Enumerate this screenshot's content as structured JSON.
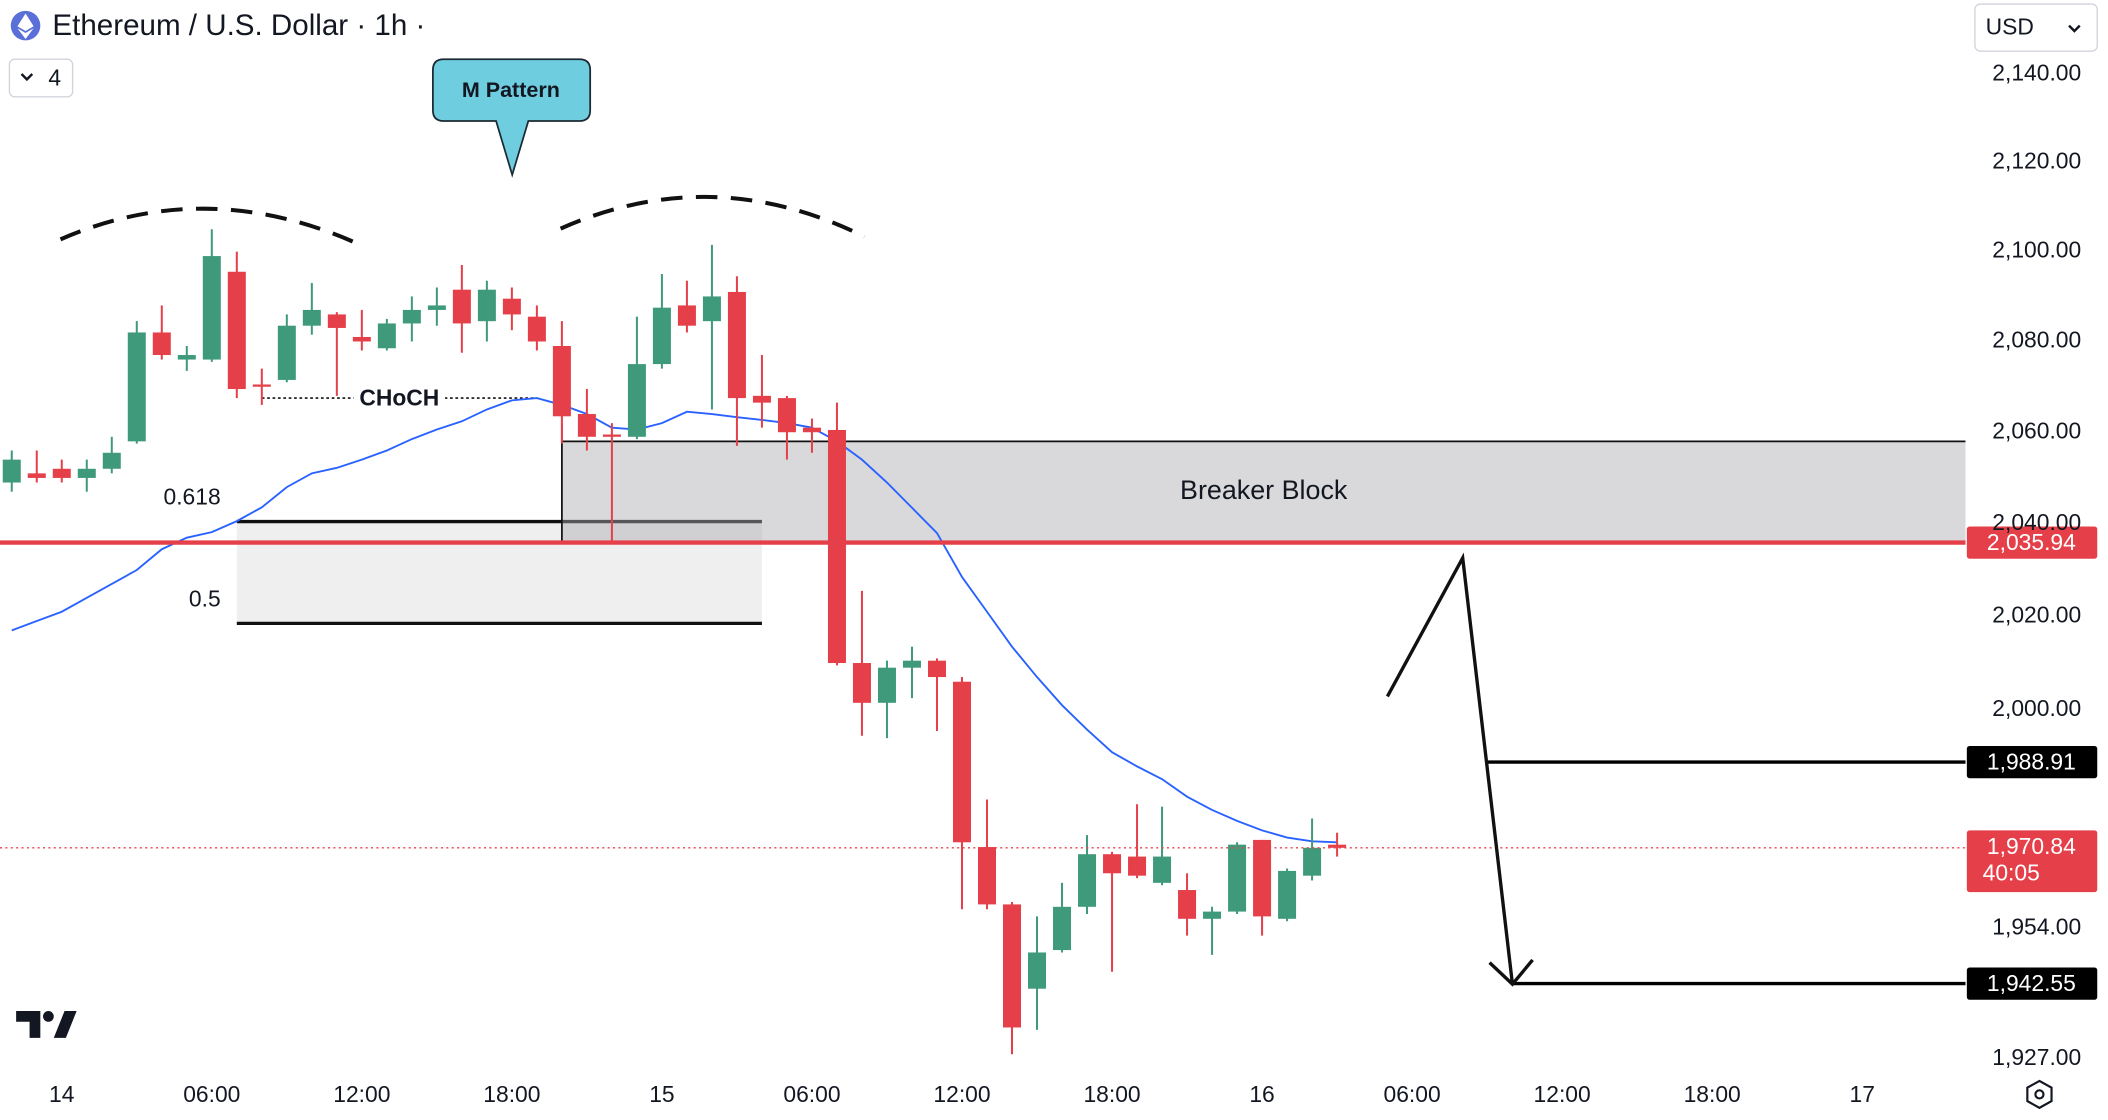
{
  "chart_data": {
    "type": "candlestick",
    "title": "Ethereum / U.S. Dollar · 1h ·",
    "indicator_count": "4",
    "currency": "USD",
    "log_scale": true,
    "up_color": "#3f9a7b",
    "down_color": "#e5404a",
    "x": [
      -2,
      -1,
      0,
      1,
      2,
      3,
      4,
      5,
      6,
      7,
      8,
      9,
      10,
      11,
      12,
      13,
      14,
      15,
      16,
      17,
      18,
      19,
      20,
      21,
      22,
      23,
      24,
      25,
      26,
      27,
      28,
      29,
      30,
      31,
      32,
      33,
      34,
      35,
      36,
      37,
      38,
      39,
      40,
      41,
      42,
      43,
      44,
      45,
      46,
      47,
      48,
      49,
      50,
      51
    ],
    "open": [
      2049,
      2051,
      2052,
      2050,
      2052,
      2058,
      2082,
      2076,
      2076,
      2095.5,
      2070.5,
      2071.5,
      2083.5,
      2086,
      2081,
      2078.5,
      2084,
      2087,
      2091.5,
      2084.5,
      2089.5,
      2085.5,
      2079,
      2064,
      2059.5,
      2059,
      2075,
      2088,
      2084.5,
      2091,
      2068,
      2067.5,
      2061,
      2060.5,
      2010,
      2001.5,
      2009,
      2010.5,
      2006,
      1971,
      1959,
      1941.5,
      1949.5,
      1958.5,
      1969.5,
      1969,
      1963.5,
      1962,
      1956,
      1957.5,
      1972.5,
      1956,
      1965,
      1971.5
    ],
    "high": [
      2056,
      2056,
      2054,
      2054,
      2059,
      2084.5,
      2088,
      2079,
      2105,
      2100,
      2074,
      2086,
      2093,
      2086.5,
      2087,
      2085,
      2090,
      2092,
      2097,
      2093.5,
      2092,
      2088,
      2084.5,
      2069.5,
      2062,
      2085.5,
      2095,
      2093.5,
      2101.5,
      2094.5,
      2077,
      2068,
      2063,
      2066.5,
      2025.5,
      2010.5,
      2013.5,
      2011,
      2007,
      1981,
      1959.5,
      1956.5,
      1963.5,
      1973.5,
      1970,
      1980,
      1979.5,
      1965.5,
      1958.5,
      1972,
      1972.5,
      1966.5,
      1977,
      1974
    ],
    "low": [
      2047,
      2049,
      2049,
      2047,
      2051,
      2057.5,
      2076,
      2073.5,
      2075.5,
      2067.5,
      2066,
      2071,
      2081.5,
      2068,
      2078,
      2078,
      2080,
      2083.5,
      2077.5,
      2080,
      2082.5,
      2078,
      2057.5,
      2056,
      2036,
      2058.5,
      2074,
      2082,
      2065,
      2057,
      2061,
      2054,
      2055.5,
      2009.5,
      1994.5,
      1994,
      2002.5,
      1995.5,
      1958,
      1958,
      1928,
      1933,
      1949,
      1957,
      1945,
      1964.5,
      1963,
      1952.5,
      1948.5,
      1957,
      1952.5,
      1955.5,
      1964,
      1969
    ],
    "close": [
      2054,
      2050,
      2050,
      2052,
      2055.5,
      2082,
      2077,
      2077,
      2099,
      2069.5,
      2070,
      2083.5,
      2087,
      2083,
      2080,
      2084,
      2087,
      2088,
      2084,
      2091.5,
      2086,
      2080,
      2063.5,
      2059,
      2059,
      2075,
      2087.5,
      2083.5,
      2090,
      2067.5,
      2066.5,
      2060,
      2060,
      2010,
      2001.5,
      2009,
      2010.5,
      2007,
      1972,
      1959,
      1933.5,
      1949,
      1958.5,
      1969.5,
      1965.5,
      1965,
      1969,
      1956,
      1957.5,
      1971.5,
      1956.5,
      1966,
      1970.84,
      1970.84
    ],
    "ma": {
      "color": "#2962ff",
      "values": [
        2017,
        2019,
        2021,
        2024,
        2027,
        2030,
        2034.5,
        2037,
        2038.2,
        2040.6,
        2043.6,
        2048,
        2051,
        2052.2,
        2054,
        2056,
        2058.5,
        2060.6,
        2062.4,
        2065,
        2067,
        2067.5,
        2066,
        2064,
        2061,
        2060.6,
        2062,
        2064.5,
        2064,
        2063.3,
        2062.7,
        2062,
        2061,
        2058,
        2054,
        2049,
        2043.5,
        2038,
        2028.5,
        2021,
        2013.5,
        2007,
        2001,
        1995.8,
        1991,
        1988,
        1985.3,
        1981.6,
        1978.8,
        1976.5,
        1974.5,
        1973,
        1972.2,
        1972
      ]
    },
    "xlim": [
      -2.47,
      76.13
    ],
    "ylim": [
      1925,
      2157
    ],
    "xticks": [
      {
        "value": 0,
        "label": "14"
      },
      {
        "value": 6,
        "label": "06:00"
      },
      {
        "value": 12,
        "label": "12:00"
      },
      {
        "value": 18,
        "label": "18:00"
      },
      {
        "value": 24,
        "label": "15"
      },
      {
        "value": 30,
        "label": "06:00"
      },
      {
        "value": 36,
        "label": "12:00"
      },
      {
        "value": 42,
        "label": "18:00"
      },
      {
        "value": 48,
        "label": "16"
      },
      {
        "value": 54,
        "label": "06:00"
      },
      {
        "value": 60,
        "label": "12:00"
      },
      {
        "value": 66,
        "label": "18:00"
      },
      {
        "value": 72,
        "label": "17"
      }
    ],
    "yticks": [
      {
        "value": 2140,
        "label": "2,140.00"
      },
      {
        "value": 2120,
        "label": "2,120.00"
      },
      {
        "value": 2100,
        "label": "2,100.00"
      },
      {
        "value": 2080,
        "label": "2,080.00"
      },
      {
        "value": 2060,
        "label": "2,060.00"
      },
      {
        "value": 2040,
        "label": "2,040.00"
      },
      {
        "value": 2020,
        "label": "2,020.00"
      },
      {
        "value": 2000,
        "label": "2,000.00"
      },
      {
        "value": 1954,
        "label": "1,954.00"
      },
      {
        "value": 1927,
        "label": "1,927.00"
      }
    ],
    "breaker_block": {
      "label": "Breaker Block",
      "top": 2058,
      "bottom": 2035.94,
      "start": 20
    },
    "fib": {
      "start": 7,
      "end": 28,
      "levels": [
        {
          "ratio": "0.618",
          "price": 2040.5
        },
        {
          "ratio": "0.5",
          "price": 2018.5
        }
      ]
    },
    "choch": {
      "label": "CHoCH",
      "price": 2067.5,
      "start": 8,
      "end": 19
    },
    "pattern_label": "M Pattern",
    "levels": [
      {
        "value": 2035.94,
        "label": "2,035.94",
        "color": "#e5404a"
      },
      {
        "value": 1988.91,
        "label": "1,988.91",
        "color": "#000000",
        "start": 57
      },
      {
        "value": 1942.55,
        "label": "1,942.55",
        "color": "#000000",
        "start": 58
      }
    ],
    "last_price": {
      "value": 1970.84,
      "label": "1,970.84",
      "countdown": "40:05",
      "color": "#e5404a"
    }
  }
}
